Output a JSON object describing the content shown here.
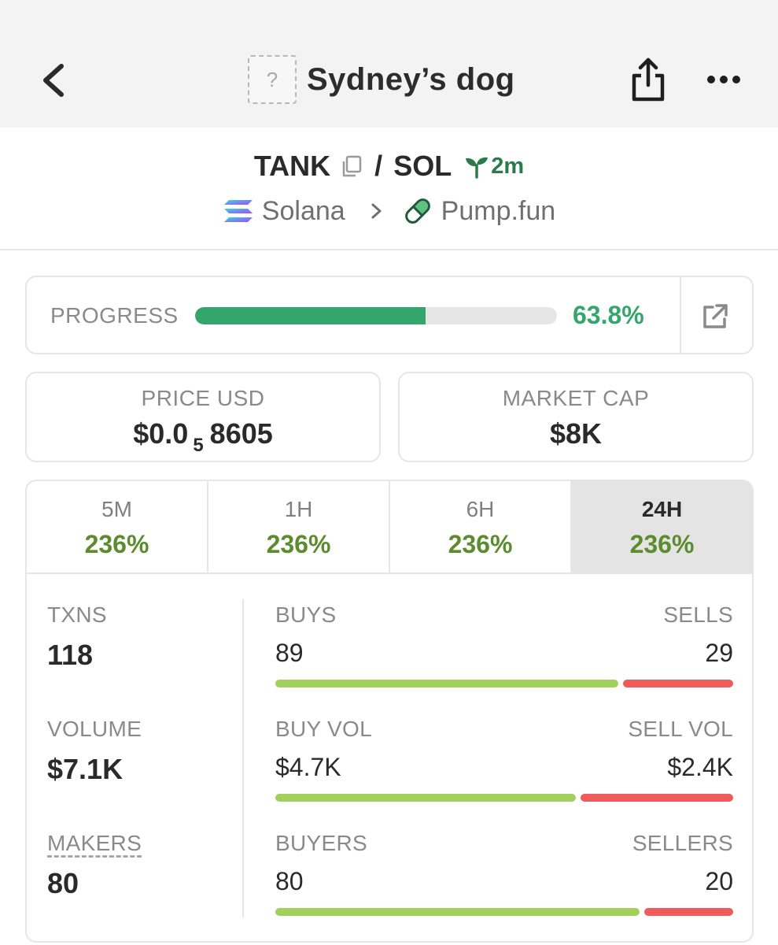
{
  "header": {
    "title": "Sydney’s dog",
    "token_image_placeholder": "?",
    "icons": [
      "back-arrow-icon",
      "share-icon",
      "more-icon"
    ]
  },
  "pair": {
    "base": "TANK",
    "separator": "/",
    "quote": "SOL",
    "age": "2m",
    "chain": "Solana",
    "dex": "Pump.fun"
  },
  "progress": {
    "label": "PROGRESS",
    "value_text": "63.8%",
    "fraction": 0.638
  },
  "price": {
    "label": "PRICE USD",
    "prefix": "$0.0",
    "zeros": "5",
    "digits": "8605"
  },
  "market_cap": {
    "label": "MARKET CAP",
    "value": "$8K"
  },
  "tabs": [
    {
      "label": "5M",
      "value": "236%"
    },
    {
      "label": "1H",
      "value": "236%"
    },
    {
      "label": "6H",
      "value": "236%"
    },
    {
      "label": "24H",
      "value": "236%",
      "active": true
    }
  ],
  "stats": {
    "txns": {
      "label": "TXNS",
      "value": "118"
    },
    "volume": {
      "label": "VOLUME",
      "value": "$7.1K"
    },
    "makers": {
      "label": "MAKERS",
      "value": "80"
    }
  },
  "breakdown": {
    "buys": {
      "left_label": "BUYS",
      "right_label": "SELLS",
      "left_value": "89",
      "right_value": "29",
      "buy_fraction": 0.754
    },
    "volume": {
      "left_label": "BUY VOL",
      "right_label": "SELL VOL",
      "left_value": "$4.7K",
      "right_value": "$2.4K",
      "buy_fraction": 0.662
    },
    "traders": {
      "left_label": "BUYERS",
      "right_label": "SELLERS",
      "left_value": "80",
      "right_value": "20",
      "buy_fraction": 0.8
    }
  },
  "colors": {
    "progress": "#34a56b",
    "tab_positive": "#5c8c2e",
    "buy_bar": "#a3cf5c",
    "sell_bar": "#ef5b5b",
    "age": "#2c7a4b"
  }
}
